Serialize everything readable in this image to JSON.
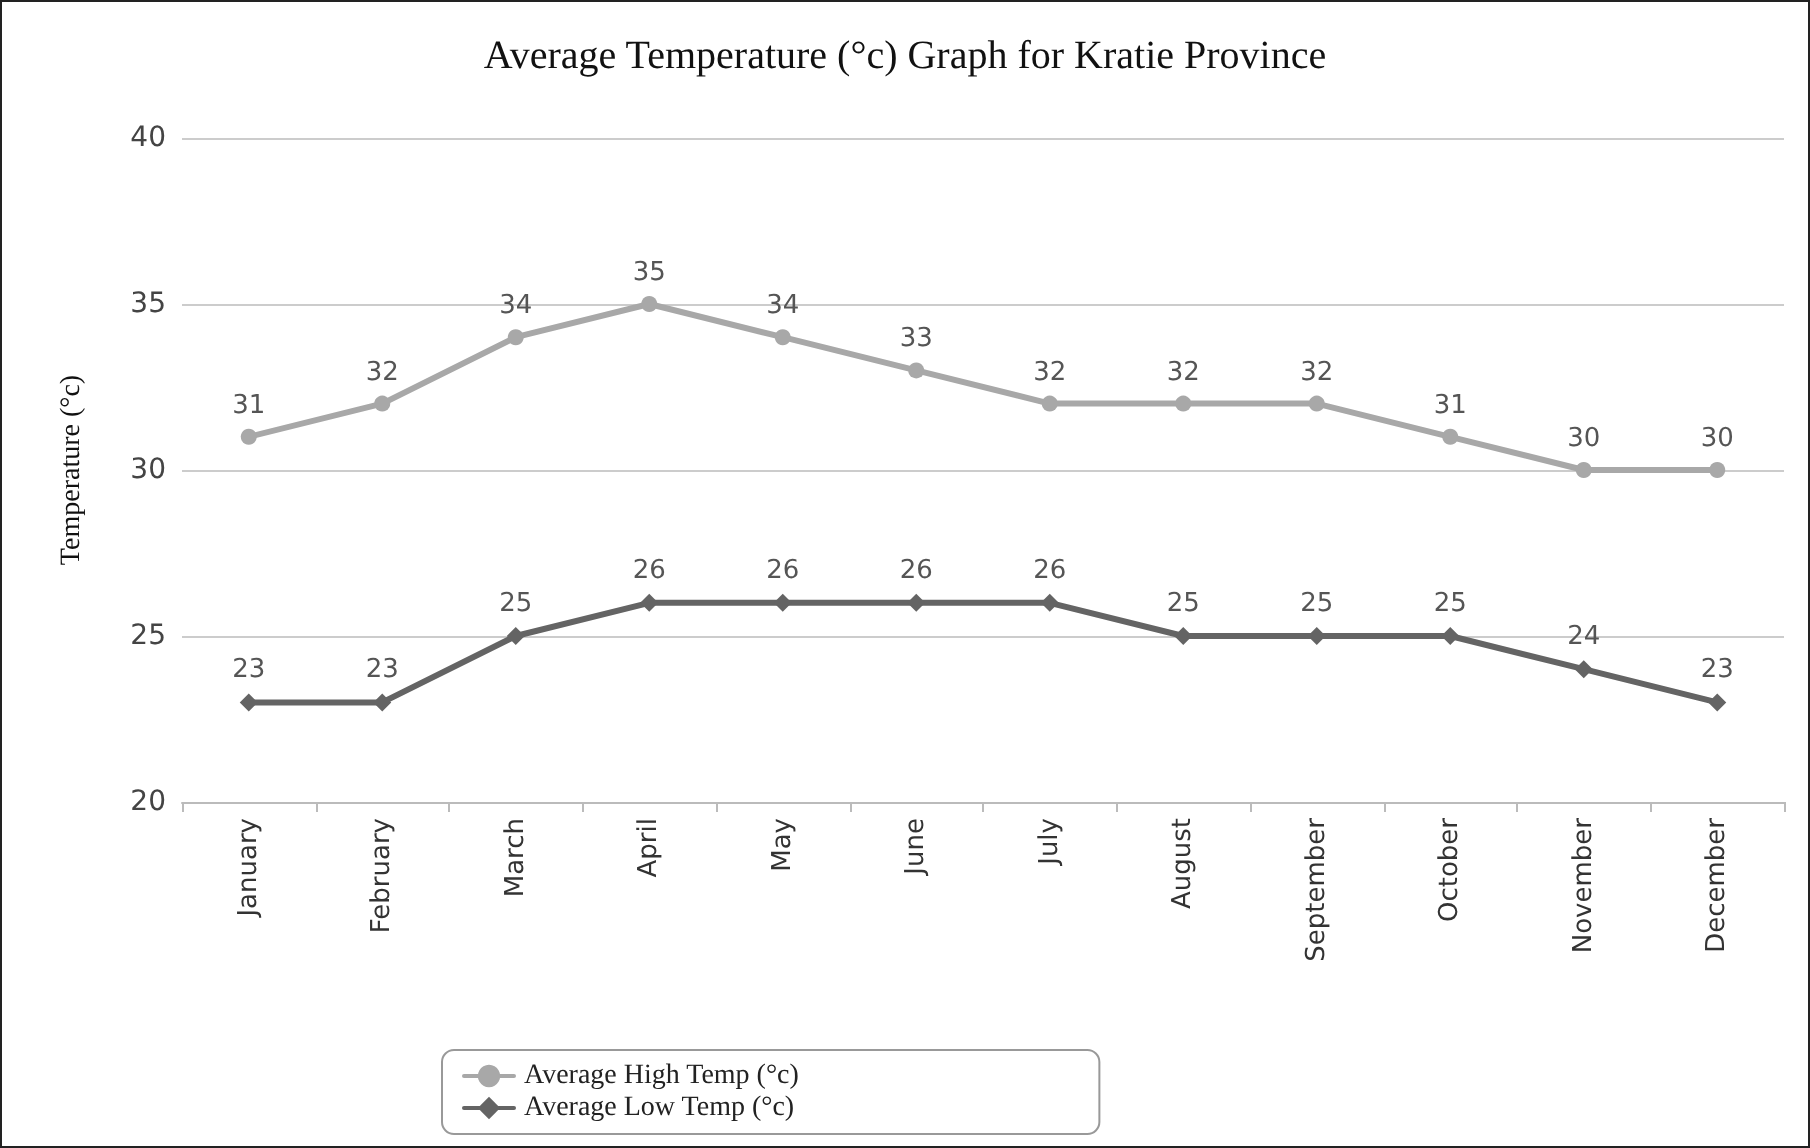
{
  "chart_data": {
    "type": "line",
    "title": "Average Temperature (°c) Graph for Kratie Province",
    "ylabel": "Temperature (°c)",
    "categories": [
      "January",
      "February",
      "March",
      "April",
      "May",
      "June",
      "July",
      "August",
      "September",
      "October",
      "November",
      "December"
    ],
    "series": [
      {
        "name": "Average High Temp (°c)",
        "color": "#a8a8a8",
        "marker": "circle",
        "values": [
          31,
          32,
          34,
          35,
          34,
          33,
          32,
          32,
          32,
          31,
          30,
          30
        ]
      },
      {
        "name": "Average Low Temp (°c)",
        "color": "#646464",
        "marker": "diamond",
        "values": [
          23,
          23,
          25,
          26,
          26,
          26,
          26,
          25,
          25,
          25,
          24,
          23
        ]
      }
    ],
    "ylim": [
      20,
      40
    ],
    "yticks": [
      20,
      25,
      30,
      35,
      40
    ],
    "grid": "y",
    "legend": "bottom left",
    "data_labels": true,
    "line_style": "solid"
  }
}
